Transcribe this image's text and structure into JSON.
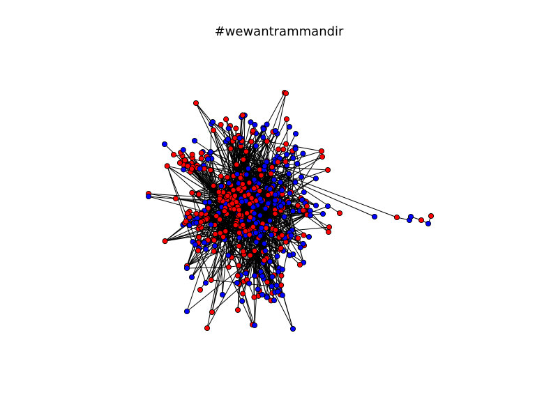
{
  "figure": {
    "title": "#wewantrammandir"
  },
  "network": {
    "node_colors": {
      "red": "#ff0000",
      "blue": "#0000ff"
    },
    "node_stroke": "#000000",
    "edge_color": "#000000"
  }
}
